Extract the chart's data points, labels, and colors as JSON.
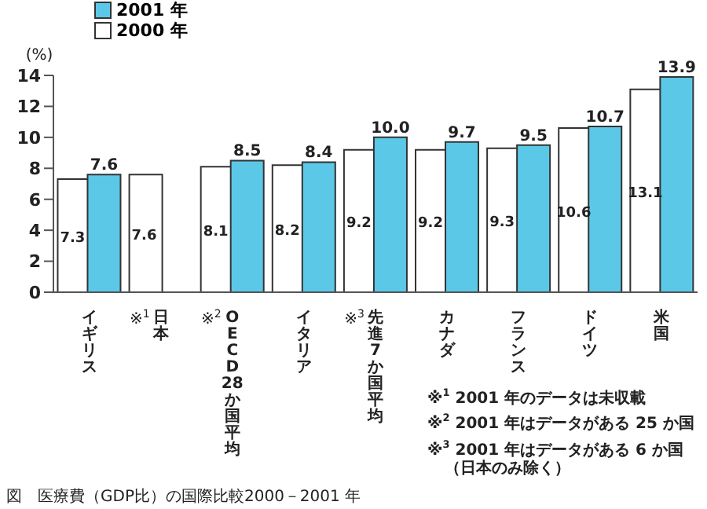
{
  "chart_data": {
    "type": "bar",
    "ylabel": "(%)",
    "categories": [
      "イギリス",
      "※$^{1}$日本",
      "※$^{2}$OECD28か国平均",
      "イタリア",
      "※$^{3}$先進7か国平均",
      "カナダ",
      "フランス",
      "ドイツ",
      "米国"
    ],
    "series": [
      {
        "name": "2001 年",
        "color": "#5bc8e8",
        "values": [
          7.6,
          null,
          8.5,
          8.4,
          10.0,
          9.7,
          9.5,
          10.7,
          13.9
        ],
        "value_labels": [
          "7.6",
          null,
          "8.5",
          "8.4",
          "10.0",
          "9.7",
          "9.5",
          "10.7",
          "13.9"
        ]
      },
      {
        "name": "2000 年",
        "color": "#ffffff",
        "values": [
          7.3,
          7.6,
          8.1,
          8.2,
          9.2,
          9.2,
          9.3,
          10.6,
          13.1
        ],
        "value_labels": [
          "7.3",
          "7.6",
          "8.1",
          "8.2",
          "9.2",
          "9.2",
          "9.3",
          "10.6",
          "13.1"
        ]
      }
    ],
    "ylim": [
      0,
      14
    ],
    "yticks": [
      0,
      2,
      4,
      6,
      8,
      10,
      12,
      14
    ],
    "grid": false,
    "legend": "top left",
    "annotations": [
      "※$^{1}$ 2001 年のデータは未収載",
      "※$^{2}$ 2001 年はデータがある 25 か国",
      "※$^{3}$ 2001 年はデータがある 6 か国（日本のみ除く）",
      "図　医療費（GDP比）の国際比較2000－2001 年"
    ]
  }
}
